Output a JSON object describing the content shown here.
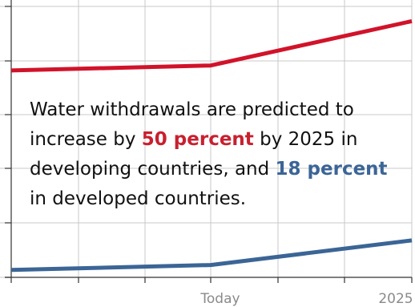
{
  "chart_data": {
    "type": "line",
    "x": [
      "",
      "Today",
      "2025"
    ],
    "tick_labels": [
      "Today",
      "2025"
    ],
    "series": [
      {
        "color": "#d1132a",
        "values": [
          8.4,
          8.6,
          10.4
        ]
      },
      {
        "color": "#3b6596",
        "values": [
          0.3,
          0.5,
          1.5
        ]
      }
    ],
    "ylim": [
      0,
      11
    ],
    "grid": true,
    "annotation": {
      "part1": "Water withdrawals are predicted to increase by ",
      "highlight1": "50 percent",
      "part2": " by 2025 in developing countries, and ",
      "highlight2": "18 percent",
      "part3": " in developed countries."
    }
  }
}
